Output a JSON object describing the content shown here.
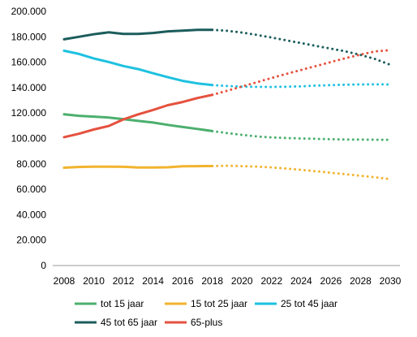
{
  "chart_data": {
    "type": "line",
    "x": [
      2008,
      2009,
      2010,
      2011,
      2012,
      2013,
      2014,
      2015,
      2016,
      2017,
      2018,
      2019,
      2020,
      2021,
      2022,
      2023,
      2024,
      2025,
      2026,
      2027,
      2028,
      2029,
      2030
    ],
    "x_tick_labels": [
      "2008",
      "2010",
      "2012",
      "2014",
      "2016",
      "2018",
      "2020",
      "2022",
      "2024",
      "2026",
      "2028",
      "2030"
    ],
    "y_tick_labels": [
      "0",
      "20.000",
      "40.000",
      "60.000",
      "80.000",
      "100.000",
      "120.000",
      "140.000",
      "160.000",
      "180.000",
      "200.000"
    ],
    "ylim": [
      0,
      200000
    ],
    "xlim": [
      2008,
      2030
    ],
    "grid": false,
    "legend_position": "bottom",
    "solid_until": 2018,
    "dotted_from": 2018,
    "series": [
      {
        "name": "tot 15 jaar",
        "color": "#4CAF6E",
        "values": [
          119000,
          117800,
          117200,
          116500,
          115200,
          113800,
          112500,
          110700,
          109000,
          107500,
          105800,
          104200,
          102800,
          101600,
          100800,
          100300,
          100000,
          99700,
          99400,
          99200,
          99100,
          99000,
          99000
        ]
      },
      {
        "name": "15 tot 25 jaar",
        "color": "#F2B32E",
        "values": [
          77000,
          77600,
          77800,
          77800,
          77700,
          77200,
          77200,
          77300,
          78100,
          78200,
          78300,
          78500,
          78200,
          77800,
          77200,
          76300,
          75300,
          74200,
          73000,
          71800,
          70700,
          69400,
          68000
        ]
      },
      {
        "name": "25 tot 45 jaar",
        "color": "#1EC1E0",
        "values": [
          169000,
          166500,
          163000,
          160200,
          157000,
          154600,
          151300,
          148200,
          145300,
          143300,
          142000,
          141300,
          140800,
          140600,
          140500,
          140700,
          141000,
          141600,
          142000,
          142300,
          142500,
          142600,
          142500
        ]
      },
      {
        "name": "45 tot 65 jaar",
        "color": "#1C5C5C",
        "values": [
          178000,
          180000,
          182000,
          183500,
          182300,
          182300,
          183000,
          184300,
          184800,
          185400,
          185500,
          184700,
          183300,
          181500,
          179400,
          177200,
          175000,
          172800,
          170700,
          168500,
          165700,
          162400,
          158000
        ]
      },
      {
        "name": "65-plus",
        "color": "#E5513E",
        "values": [
          101000,
          103700,
          107000,
          109800,
          115000,
          119000,
          122400,
          126200,
          128700,
          131800,
          134300,
          137500,
          140900,
          144200,
          147600,
          150800,
          153900,
          157000,
          160100,
          163200,
          166000,
          168500,
          169500
        ]
      }
    ]
  }
}
